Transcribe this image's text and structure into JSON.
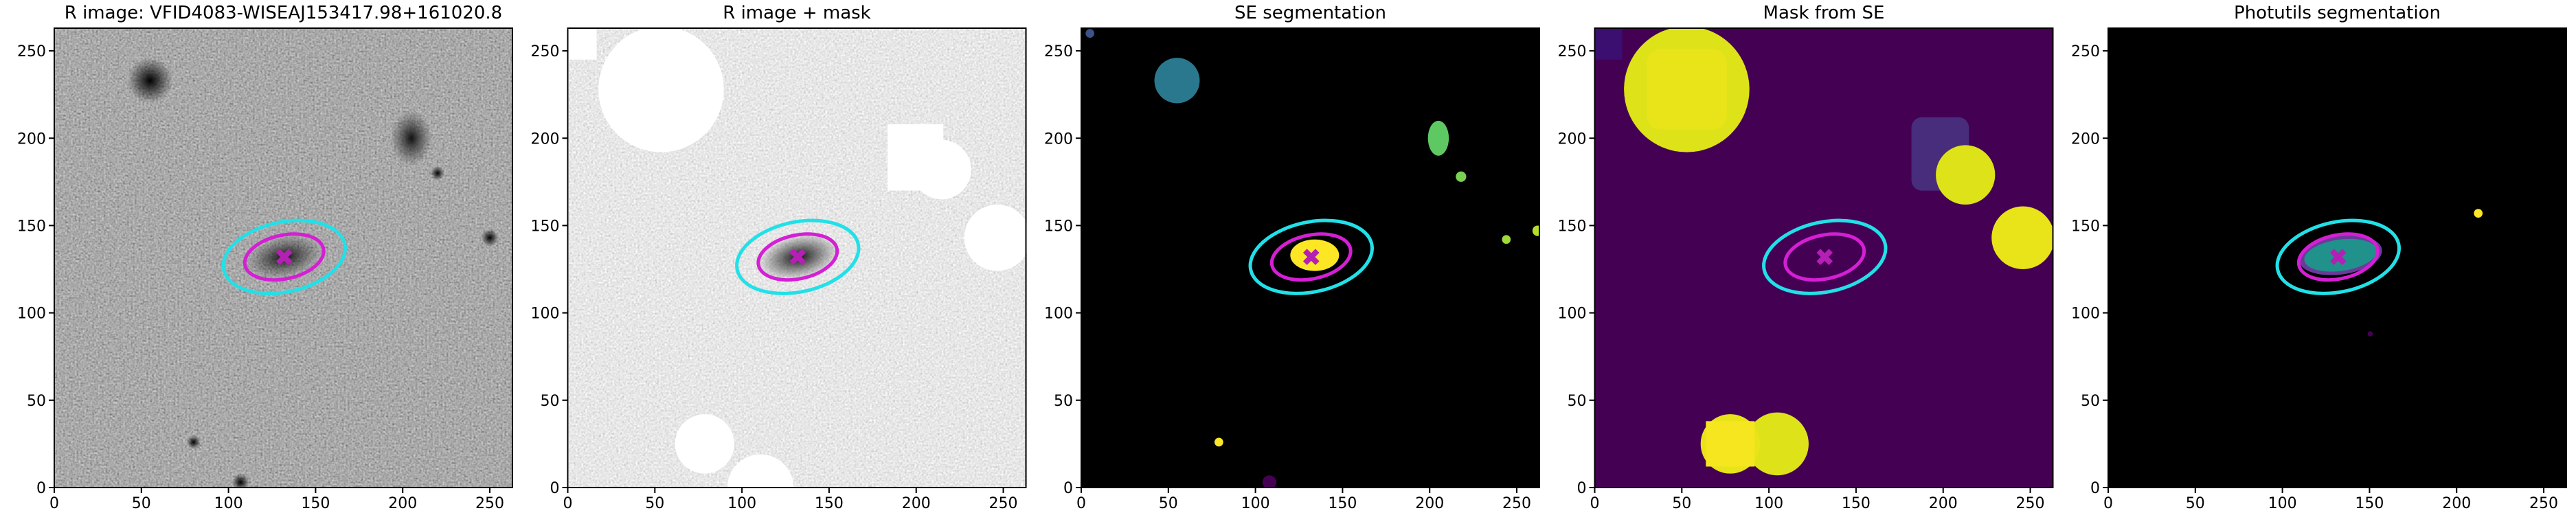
{
  "chart_data": [
    {
      "type": "image",
      "title": "R image: VFID4083-WISEAJ153417.98+161020.8",
      "xlim": [
        0,
        263
      ],
      "ylim": [
        0,
        263
      ],
      "xticks": [
        0,
        50,
        100,
        150,
        200,
        250
      ],
      "yticks": [
        0,
        50,
        100,
        150,
        200,
        250
      ],
      "ellipses": [
        {
          "color": "#22e0e8",
          "x": 132,
          "y": 132,
          "width": 71,
          "height": 40,
          "angle": 12
        },
        {
          "color": "#d41fd4",
          "x": 132,
          "y": 132,
          "width": 46,
          "height": 25,
          "angle": 12
        }
      ],
      "marker": {
        "x": 132,
        "y": 132,
        "color": "#b41fb4"
      }
    },
    {
      "type": "image",
      "title": "R image + mask",
      "xlim": [
        0,
        263
      ],
      "ylim": [
        0,
        263
      ],
      "xticks": [
        0,
        50,
        100,
        150,
        200,
        250
      ],
      "yticks": [
        0,
        50,
        100,
        150,
        200,
        250
      ],
      "ellipses": [
        {
          "color": "#22e0e8",
          "x": 132,
          "y": 132,
          "width": 71,
          "height": 40,
          "angle": 12
        },
        {
          "color": "#d41fd4",
          "x": 132,
          "y": 132,
          "width": 46,
          "height": 25,
          "angle": 12
        }
      ],
      "marker": {
        "x": 132,
        "y": 132,
        "color": "#b41fb4"
      }
    },
    {
      "type": "image",
      "title": "SE segmentation",
      "xlim": [
        0,
        263
      ],
      "ylim": [
        0,
        263
      ],
      "xticks": [
        0,
        50,
        100,
        150,
        200,
        250
      ],
      "yticks": [
        0,
        50,
        100,
        150,
        200,
        250
      ],
      "ellipses": [
        {
          "color": "#22e0e8",
          "x": 132,
          "y": 132,
          "width": 71,
          "height": 40,
          "angle": 12
        },
        {
          "color": "#d41fd4",
          "x": 132,
          "y": 132,
          "width": 46,
          "height": 25,
          "angle": 12
        }
      ],
      "marker": {
        "x": 132,
        "y": 132,
        "color": "#b41fb4"
      }
    },
    {
      "type": "image",
      "title": "Mask from SE",
      "xlim": [
        0,
        263
      ],
      "ylim": [
        0,
        263
      ],
      "xticks": [
        0,
        50,
        100,
        150,
        200,
        250
      ],
      "yticks": [
        0,
        50,
        100,
        150,
        200,
        250
      ],
      "ellipses": [
        {
          "color": "#22e0e8",
          "x": 132,
          "y": 132,
          "width": 71,
          "height": 40,
          "angle": 12
        },
        {
          "color": "#d41fd4",
          "x": 132,
          "y": 132,
          "width": 46,
          "height": 25,
          "angle": 12
        }
      ],
      "marker": {
        "x": 132,
        "y": 132,
        "color": "#b41fb4"
      }
    },
    {
      "type": "image",
      "title": "Photutils segmentation",
      "xlim": [
        0,
        263
      ],
      "ylim": [
        0,
        263
      ],
      "xticks": [
        0,
        50,
        100,
        150,
        200,
        250
      ],
      "yticks": [
        0,
        50,
        100,
        150,
        200,
        250
      ],
      "ellipses": [
        {
          "color": "#22e0e8",
          "x": 132,
          "y": 132,
          "width": 71,
          "height": 40,
          "angle": 12
        },
        {
          "color": "#d41fd4",
          "x": 132,
          "y": 132,
          "width": 46,
          "height": 25,
          "angle": 12
        }
      ],
      "marker": {
        "x": 132,
        "y": 132,
        "color": "#b41fb4"
      }
    }
  ]
}
